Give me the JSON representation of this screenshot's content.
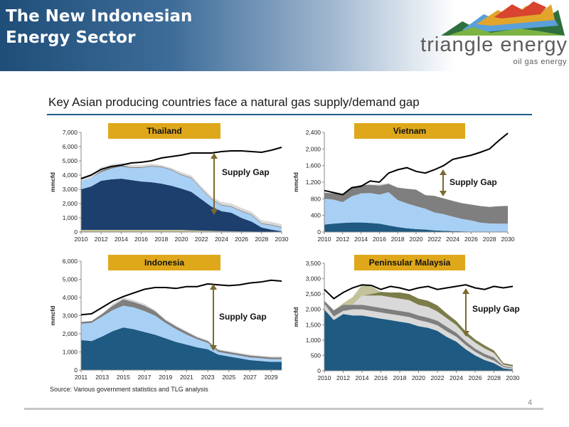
{
  "header": {
    "title_line1": "The New Indonesian",
    "title_line2": "Energy Sector",
    "logo_text": "triangle energy",
    "logo_tagline": "oil gas energy",
    "band_color": "#1f4e79"
  },
  "subtitle": "Key Asian producing countries face a natural gas supply/demand gap",
  "source": "Source: Various government statistics and TLG analysis",
  "page_number": "4",
  "colors": {
    "demand_line": "#000000",
    "label_box": "#dfa81b",
    "arrow": "#7b6a2e",
    "layer_dark_blue": "#1d3f6e",
    "layer_teal_blue": "#1e5a82",
    "layer_light_blue": "#a8d0f5",
    "layer_gray": "#7f7f7f",
    "layer_light_gray": "#d9d9d9",
    "layer_olive": "#7c7c4a",
    "layer_khaki": "#c4c29a"
  },
  "chart_data": [
    {
      "type": "area",
      "title": "Thailand",
      "ylabel": "mmcfd",
      "annotation": "Supply Gap",
      "x": [
        2010,
        2011,
        2012,
        2013,
        2014,
        2015,
        2016,
        2017,
        2018,
        2019,
        2020,
        2021,
        2022,
        2023,
        2024,
        2025,
        2026,
        2027,
        2028,
        2029,
        2030
      ],
      "ylim": [
        0,
        7000
      ],
      "yticks": [
        0,
        1000,
        2000,
        3000,
        4000,
        5000,
        6000,
        7000
      ],
      "ytick_labels": [
        "0",
        "1,000",
        "2,000",
        "3,000",
        "4,000",
        "5,000",
        "6,000",
        "7,000"
      ],
      "xtick_labels": [
        "2010",
        "2012",
        "2014",
        "2016",
        "2018",
        "2020",
        "2022",
        "2024",
        "2026",
        "2028",
        "2030"
      ],
      "series": [
        {
          "kind": "area",
          "color": "#c4c29a",
          "values": [
            150,
            150,
            150,
            150,
            150,
            150,
            150,
            150,
            150,
            150,
            150,
            120,
            100,
            80,
            60,
            50,
            40,
            30,
            20,
            10,
            0
          ]
        },
        {
          "kind": "area",
          "color": "#1d3f6e",
          "values": [
            2850,
            3050,
            3450,
            3550,
            3600,
            3500,
            3400,
            3350,
            3250,
            3100,
            2900,
            2700,
            2200,
            1700,
            1400,
            1300,
            950,
            700,
            300,
            150,
            50
          ]
        },
        {
          "kind": "area",
          "color": "#a8d0f5",
          "values": [
            600,
            600,
            600,
            750,
            850,
            850,
            950,
            1100,
            1150,
            1100,
            950,
            950,
            700,
            500,
            400,
            400,
            450,
            450,
            250,
            300,
            250
          ]
        },
        {
          "kind": "area",
          "color": "#7f7f7f",
          "values": [
            0,
            0,
            100,
            100,
            100,
            50,
            50,
            50,
            50,
            50,
            50,
            50,
            50,
            50,
            50,
            50,
            50,
            50,
            50,
            50,
            50
          ]
        },
        {
          "kind": "area",
          "color": "#d9d9d9",
          "values": [
            150,
            200,
            250,
            200,
            150,
            150,
            150,
            150,
            100,
            100,
            150,
            150,
            150,
            150,
            200,
            200,
            200,
            200,
            200,
            200,
            200
          ]
        },
        {
          "kind": "line",
          "color": "#000000",
          "values": [
            3750,
            4000,
            4400,
            4600,
            4700,
            4850,
            4900,
            5000,
            5200,
            5300,
            5400,
            5550,
            5550,
            5550,
            5650,
            5700,
            5700,
            5650,
            5600,
            5750,
            5950
          ]
        }
      ]
    },
    {
      "type": "area",
      "title": "Vietnam",
      "ylabel": "mmcfd",
      "annotation": "Supply Gap",
      "x": [
        2010,
        2011,
        2012,
        2013,
        2014,
        2015,
        2016,
        2017,
        2018,
        2019,
        2020,
        2021,
        2022,
        2023,
        2024,
        2025,
        2026,
        2027,
        2028,
        2029,
        2030
      ],
      "ylim": [
        0,
        2400
      ],
      "yticks": [
        0,
        400,
        800,
        1200,
        1600,
        2000,
        2400
      ],
      "ytick_labels": [
        "0",
        "400",
        "800",
        "1,200",
        "1,600",
        "2,000",
        "2,400"
      ],
      "xtick_labels": [
        "2010",
        "2012",
        "2014",
        "2016",
        "2018",
        "2020",
        "2022",
        "2024",
        "2026",
        "2028",
        "2030"
      ],
      "series": [
        {
          "kind": "area",
          "color": "#1e5a82",
          "values": [
            180,
            200,
            220,
            230,
            230,
            220,
            200,
            160,
            120,
            90,
            70,
            60,
            40,
            30,
            20,
            15,
            10,
            5,
            5,
            0,
            0
          ]
        },
        {
          "kind": "area",
          "color": "#a8d0f5",
          "values": [
            620,
            580,
            500,
            630,
            700,
            720,
            700,
            800,
            650,
            600,
            550,
            500,
            430,
            400,
            350,
            300,
            270,
            220,
            200,
            200,
            200
          ]
        },
        {
          "kind": "area",
          "color": "#7f7f7f",
          "values": [
            150,
            150,
            180,
            220,
            200,
            200,
            220,
            200,
            300,
            350,
            400,
            330,
            400,
            380,
            380,
            380,
            380,
            400,
            400,
            420,
            430
          ]
        },
        {
          "kind": "area",
          "color": "#d9d9d9",
          "values": [
            0,
            0,
            0,
            0,
            0,
            0,
            30,
            20,
            0,
            0,
            0,
            0,
            0,
            0,
            0,
            0,
            0,
            0,
            0,
            0,
            0
          ]
        },
        {
          "kind": "line",
          "color": "#000000",
          "values": [
            1000,
            950,
            900,
            1070,
            1100,
            1230,
            1200,
            1420,
            1500,
            1550,
            1460,
            1420,
            1500,
            1600,
            1750,
            1800,
            1850,
            1920,
            2000,
            2200,
            2380
          ]
        }
      ]
    },
    {
      "type": "area",
      "title": "Indonesia",
      "ylabel": "mmcfd",
      "annotation": "Supply Gap",
      "x": [
        2011,
        2012,
        2013,
        2014,
        2015,
        2016,
        2017,
        2018,
        2019,
        2020,
        2021,
        2022,
        2023,
        2024,
        2025,
        2026,
        2027,
        2028,
        2029,
        2030
      ],
      "ylim": [
        0,
        6000
      ],
      "yticks": [
        0,
        1000,
        2000,
        3000,
        4000,
        5000,
        6000
      ],
      "ytick_labels": [
        "0",
        "1,000",
        "2,000",
        "3,000",
        "4,000",
        "5,000",
        "6,000"
      ],
      "xtick_labels": [
        "2011",
        "2013",
        "2015",
        "2017",
        "2019",
        "2021",
        "2023",
        "2025",
        "2027",
        "2029"
      ],
      "series": [
        {
          "kind": "area",
          "color": "#1e5a82",
          "values": [
            1650,
            1600,
            1850,
            2150,
            2350,
            2250,
            2100,
            1950,
            1750,
            1550,
            1400,
            1250,
            1150,
            850,
            750,
            650,
            550,
            500,
            450,
            450
          ]
        },
        {
          "kind": "area",
          "color": "#a8d0f5",
          "values": [
            900,
            1000,
            1100,
            1150,
            1200,
            1200,
            1150,
            1050,
            850,
            700,
            550,
            450,
            350,
            150,
            150,
            150,
            150,
            150,
            150,
            150
          ]
        },
        {
          "kind": "area",
          "color": "#7f7f7f",
          "values": [
            100,
            100,
            150,
            250,
            350,
            300,
            300,
            250,
            150,
            150,
            150,
            100,
            100,
            100,
            100,
            100,
            100,
            100,
            100,
            100
          ]
        },
        {
          "kind": "area",
          "color": "#d9d9d9",
          "values": [
            0,
            0,
            0,
            100,
            100,
            100,
            100,
            50,
            50,
            50,
            50,
            50,
            50,
            50,
            50,
            50,
            50,
            50,
            50,
            50
          ]
        },
        {
          "kind": "line",
          "color": "#000000",
          "values": [
            3050,
            3100,
            3450,
            3800,
            4050,
            4250,
            4450,
            4550,
            4550,
            4500,
            4600,
            4600,
            4750,
            4700,
            4650,
            4700,
            4800,
            4850,
            4950,
            4900
          ]
        }
      ]
    },
    {
      "type": "area",
      "title": "Peninsular Malaysia",
      "ylabel": "mmcfd",
      "annotation": "Supply Gap",
      "x": [
        2010,
        2011,
        2012,
        2013,
        2014,
        2015,
        2016,
        2017,
        2018,
        2019,
        2020,
        2021,
        2022,
        2023,
        2024,
        2025,
        2026,
        2027,
        2028,
        2029,
        2030
      ],
      "ylim": [
        0,
        3500
      ],
      "yticks": [
        0,
        500,
        1000,
        1500,
        2000,
        2500,
        3000,
        3500
      ],
      "ytick_labels": [
        "0",
        "500",
        "1,000",
        "1,500",
        "2,000",
        "2,500",
        "3,000",
        "3,500"
      ],
      "xtick_labels": [
        "2010",
        "2012",
        "2014",
        "2016",
        "2018",
        "2020",
        "2022",
        "2024",
        "2026",
        "2028",
        "2030"
      ],
      "series": [
        {
          "kind": "area",
          "color": "#1e5a82",
          "values": [
            2000,
            1650,
            1850,
            1800,
            1800,
            1750,
            1700,
            1650,
            1600,
            1550,
            1450,
            1400,
            1300,
            1100,
            950,
            700,
            500,
            350,
            250,
            80,
            40
          ]
        },
        {
          "kind": "area",
          "color": "#d9d9d9",
          "values": [
            180,
            120,
            100,
            200,
            200,
            200,
            200,
            200,
            200,
            200,
            200,
            180,
            180,
            180,
            160,
            140,
            120,
            100,
            80,
            40,
            30
          ]
        },
        {
          "kind": "area",
          "color": "#7f7f7f",
          "values": [
            100,
            200,
            200,
            150,
            150,
            150,
            150,
            150,
            150,
            150,
            150,
            150,
            150,
            150,
            130,
            120,
            100,
            100,
            100,
            40,
            30
          ]
        },
        {
          "kind": "area",
          "color": "#d9d9d9",
          "values": [
            0,
            0,
            0,
            0,
            300,
            350,
            400,
            400,
            400,
            400,
            350,
            350,
            300,
            280,
            250,
            200,
            200,
            180,
            150,
            40,
            40
          ]
        },
        {
          "kind": "area",
          "color": "#7c7c4a",
          "values": [
            0,
            0,
            0,
            0,
            0,
            50,
            120,
            150,
            200,
            200,
            200,
            200,
            200,
            150,
            130,
            120,
            100,
            100,
            80,
            50,
            50
          ]
        },
        {
          "kind": "area",
          "color": "#c4c29a",
          "values": [
            0,
            0,
            50,
            250,
            350,
            250,
            0,
            0,
            0,
            0,
            0,
            0,
            0,
            0,
            0,
            0,
            0,
            0,
            0,
            0,
            0
          ]
        },
        {
          "kind": "line",
          "color": "#000000",
          "values": [
            2650,
            2350,
            2550,
            2700,
            2800,
            2780,
            2650,
            2750,
            2700,
            2620,
            2700,
            2750,
            2650,
            2700,
            2750,
            2800,
            2700,
            2650,
            2750,
            2700,
            2750
          ]
        }
      ]
    }
  ]
}
